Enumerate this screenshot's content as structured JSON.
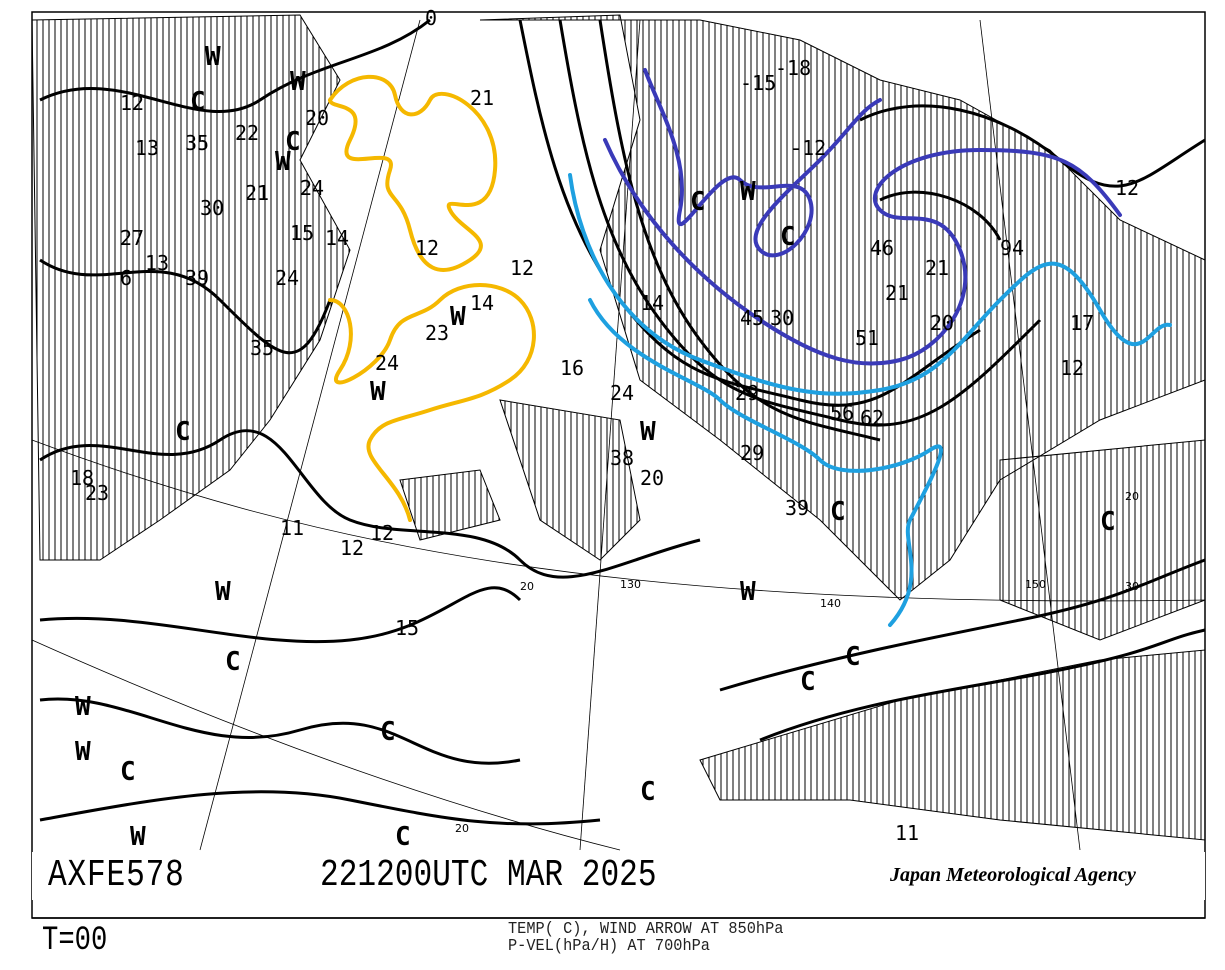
{
  "chart_code": "AXFE578",
  "valid_time": "221200UTC MAR 2025",
  "agency": "Japan Meteorological Agency",
  "forecast_time": "T=00",
  "legend": {
    "line1": "TEMP( C), WIND ARROW AT 850hPa",
    "line2": "P-VEL(hPa/H) AT 700hPa"
  },
  "colors": {
    "contour": "#000000",
    "isotherm_warm": "#f5b800",
    "isotherm_mid": "#1ea0e0",
    "isotherm_cold": "#3a3ab8"
  },
  "map_labels": [
    "0",
    "-15",
    "-18",
    "-12",
    "12",
    "W",
    "C",
    "W",
    "C",
    "21",
    "20",
    "22",
    "35",
    "13",
    "24",
    "30",
    "21",
    "15",
    "14",
    "27",
    "13",
    "6",
    "39",
    "35",
    "24",
    "12",
    "23",
    "14",
    "12",
    "24",
    "16",
    "14",
    "45",
    "30",
    "51",
    "20",
    "21",
    "46",
    "94",
    "12",
    "17",
    "12",
    "29",
    "24",
    "38",
    "20",
    "29",
    "56",
    "62",
    "39",
    "C",
    "W",
    "C",
    "W",
    "21",
    "W",
    "C",
    "W",
    "18",
    "23",
    "11",
    "12",
    "12",
    "15",
    "W",
    "C",
    "W",
    "C",
    "C",
    "W",
    "C",
    "C",
    "C",
    "C",
    "W",
    "C",
    "W",
    "W",
    "C",
    "11"
  ],
  "grid_labels": [
    "130",
    "140",
    "150",
    "30",
    "20",
    "20",
    "20"
  ]
}
